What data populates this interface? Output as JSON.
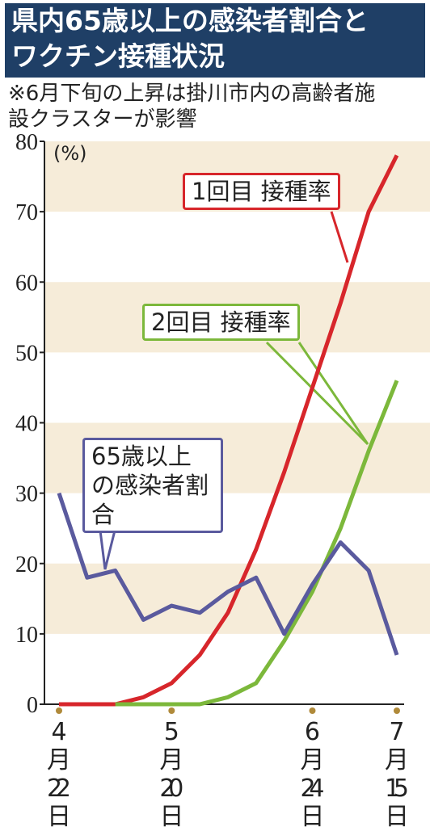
{
  "chart_data": {
    "type": "line",
    "title": [
      "県内65歳以上の感染者割合と",
      "ワクチン接種状況"
    ],
    "note": [
      "※6月下旬の上昇は掛川市内の高齢者施",
      "設クラスターが影響"
    ],
    "y_unit": "(%)",
    "categories": [
      "4月22日",
      null,
      null,
      null,
      "5月20日",
      null,
      null,
      null,
      null,
      "6月24日",
      null,
      null,
      "7月15日"
    ],
    "series": [
      {
        "name": "1回目 接種率",
        "color": "#d7262b",
        "values": [
          0,
          0,
          0,
          1,
          3,
          7,
          13,
          22,
          33,
          45,
          57,
          70,
          78
        ]
      },
      {
        "name": "2回目 接種率",
        "color": "#7cb83b",
        "values": [
          null,
          null,
          0,
          0,
          0,
          0,
          1,
          3,
          9,
          16,
          25,
          36,
          46
        ]
      },
      {
        "name": "65歳以上の感染者割合",
        "color": "#5a5a9e",
        "values": [
          30,
          18,
          19,
          12,
          14,
          13,
          16,
          18,
          10,
          17,
          23,
          19,
          7
        ]
      }
    ],
    "ylim": [
      0,
      80
    ],
    "yticks": [
      0,
      10,
      20,
      30,
      40,
      50,
      60,
      70,
      80
    ],
    "grid_bands": true
  }
}
